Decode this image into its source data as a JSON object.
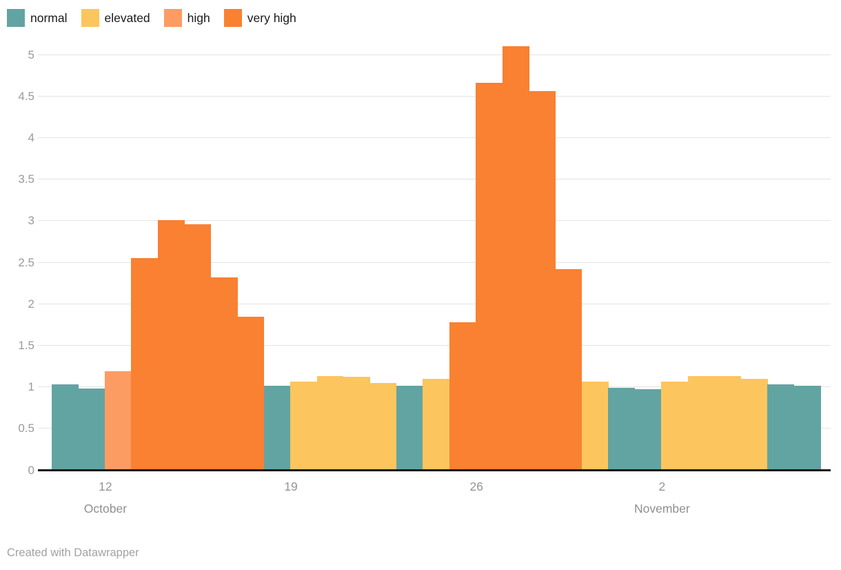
{
  "legend": {
    "items": [
      {
        "label": "normal",
        "color": "#62a4a2"
      },
      {
        "label": "elevated",
        "color": "#fdc55e"
      },
      {
        "label": "high",
        "color": "#fc9c63"
      },
      {
        "label": "very high",
        "color": "#fa8032"
      }
    ]
  },
  "footer": {
    "credit": "Created with Datawrapper"
  },
  "chart_data": {
    "type": "bar",
    "title": "",
    "categories": [
      "Oct 10",
      "Oct 11",
      "Oct 12",
      "Oct 13",
      "Oct 14",
      "Oct 15",
      "Oct 16",
      "Oct 17",
      "Oct 18",
      "Oct 19",
      "Oct 20",
      "Oct 21",
      "Oct 22",
      "Oct 23",
      "Oct 24",
      "Oct 25",
      "Oct 26",
      "Oct 27",
      "Oct 28",
      "Oct 29",
      "Oct 30",
      "Oct 31",
      "Nov 1",
      "Nov 2",
      "Nov 3",
      "Nov 4",
      "Nov 5",
      "Nov 6",
      "Nov 7"
    ],
    "values": [
      1.03,
      0.98,
      1.19,
      2.55,
      3.01,
      2.96,
      2.32,
      1.84,
      1.01,
      1.06,
      1.13,
      1.12,
      1.05,
      1.01,
      1.1,
      1.78,
      4.66,
      5.1,
      4.56,
      2.42,
      1.06,
      0.99,
      0.97,
      1.06,
      1.13,
      1.13,
      1.1,
      1.03,
      1.01
    ],
    "levels": [
      "normal",
      "normal",
      "high",
      "very high",
      "very high",
      "very high",
      "very high",
      "very high",
      "normal",
      "elevated",
      "elevated",
      "elevated",
      "elevated",
      "normal",
      "elevated",
      "very high",
      "very high",
      "very high",
      "very high",
      "very high",
      "elevated",
      "normal",
      "normal",
      "elevated",
      "elevated",
      "elevated",
      "elevated",
      "normal",
      "normal"
    ],
    "level_colors": {
      "normal": "#62a4a2",
      "elevated": "#fdc55e",
      "high": "#fc9c63",
      "very high": "#fa8032"
    },
    "legend_entries": [
      "normal",
      "elevated",
      "high",
      "very high"
    ],
    "legend_position": "top-left",
    "grid": true,
    "yticks": [
      0,
      0.5,
      1,
      1.5,
      2,
      2.5,
      3,
      3.5,
      4,
      4.5,
      5
    ],
    "ylim": [
      0,
      5.2
    ],
    "xlabel": "",
    "ylabel": "",
    "xticks": [
      {
        "index": 2,
        "day": "12",
        "month": "October"
      },
      {
        "index": 9,
        "day": "19",
        "month": ""
      },
      {
        "index": 16,
        "day": "26",
        "month": ""
      },
      {
        "index": 23,
        "day": "2",
        "month": "November"
      }
    ],
    "credit": "Created with Datawrapper"
  }
}
